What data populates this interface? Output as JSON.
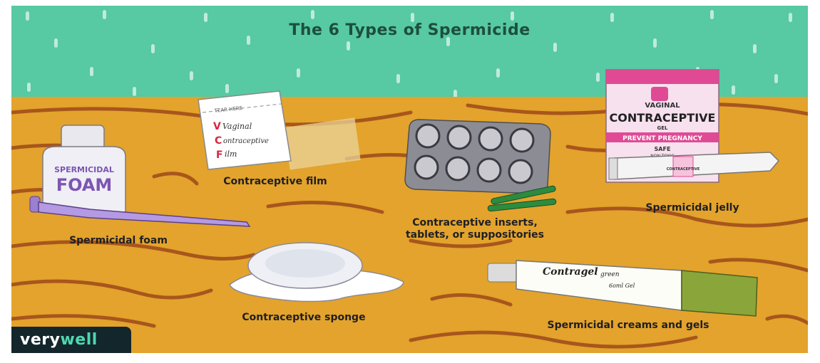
{
  "title": "The 6 Types of Spermicide",
  "items": {
    "foam": {
      "caption": "Spermicidal foam",
      "bottle_text_1": "SPERMICIDAL",
      "bottle_text_2": "FOAM"
    },
    "film": {
      "caption": "Contraceptive film",
      "packet_tear": "TEAR HERE",
      "packet_l1": "Vaginal",
      "packet_l2": "ontraceptive",
      "packet_l3": "ilm",
      "letter_v": "V",
      "letter_c": "C",
      "letter_f": "F"
    },
    "inserts": {
      "caption_line1": "Contraceptive inserts,",
      "caption_line2": "tablets, or suppositories"
    },
    "jelly": {
      "caption": "Spermicidal jelly",
      "box_l1": "VAGINAL",
      "box_l2": "CONTRACEPTIVE",
      "box_l3": "GEL",
      "box_band": "PREVENT PREGNANCY",
      "box_l4": "SAFE",
      "box_l5": "NON-TOXIC",
      "tube_text": "CONTRACEPTIVE"
    },
    "sponge": {
      "caption": "Contraceptive sponge"
    },
    "creams": {
      "caption": "Spermicidal creams and gels",
      "tube_l1": "Contragel",
      "tube_l2": "green",
      "tube_l3": "6oml Gel"
    }
  },
  "brand": {
    "part1": "very",
    "part2": "well"
  },
  "colors": {
    "sky": "#57c9a3",
    "table": "#e3a32c",
    "woodgrain": "#a8561c",
    "box_pink": "#e04a95",
    "tube_green": "#8aa63a"
  }
}
